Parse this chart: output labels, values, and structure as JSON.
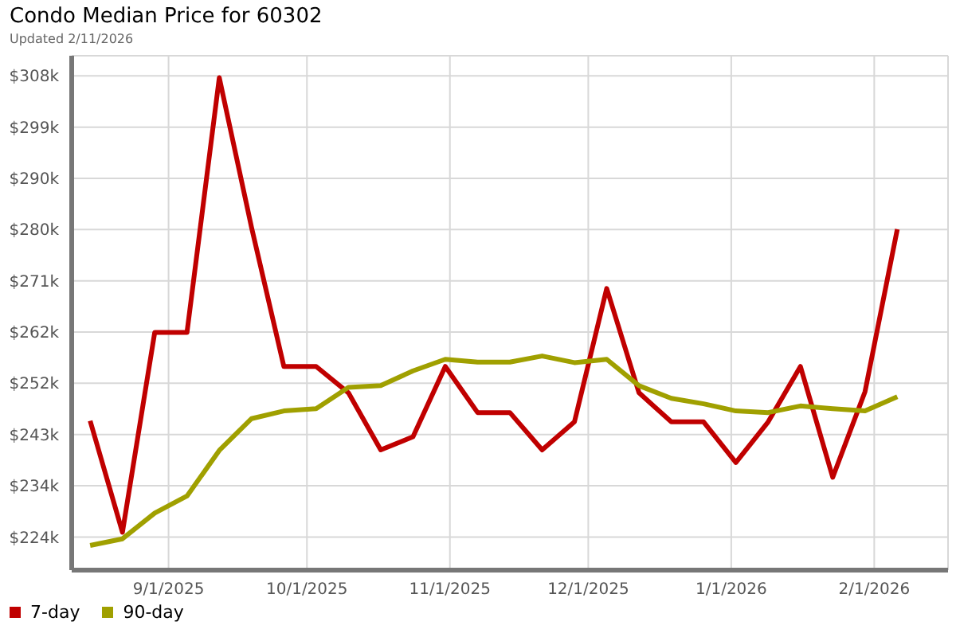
{
  "chart_data": {
    "type": "line",
    "title": "Condo Median Price for 60302",
    "subtitle": "Updated 2/11/2026",
    "x": [
      "2025-08-15",
      "2025-08-22",
      "2025-08-29",
      "2025-09-05",
      "2025-09-12",
      "2025-09-19",
      "2025-09-26",
      "2025-10-03",
      "2025-10-10",
      "2025-10-17",
      "2025-10-24",
      "2025-10-31",
      "2025-11-07",
      "2025-11-14",
      "2025-11-21",
      "2025-11-28",
      "2025-12-05",
      "2025-12-12",
      "2025-12-19",
      "2025-12-26",
      "2026-01-02",
      "2026-01-09",
      "2026-01-16",
      "2026-01-23",
      "2026-01-30",
      "2026-02-06"
    ],
    "series": [
      {
        "name": "7-day",
        "color": "#c00000",
        "values": [
          245500,
          225200,
          261600,
          261600,
          308000,
          280700,
          255400,
          255400,
          250600,
          240200,
          242600,
          255400,
          247000,
          247000,
          240200,
          245300,
          269600,
          250600,
          245300,
          245300,
          237900,
          245300,
          255400,
          235200,
          250800,
          280400
        ]
      },
      {
        "name": "90-day",
        "color": "#a0a000",
        "values": [
          222800,
          224000,
          228700,
          231800,
          240100,
          245900,
          247300,
          247700,
          251600,
          251900,
          254600,
          256700,
          256200,
          256200,
          257300,
          256100,
          256700,
          251900,
          249600,
          248600,
          247300,
          247000,
          248200,
          247700,
          247300,
          249900
        ]
      }
    ],
    "xlim": [
      "2025-08-11",
      "2026-02-17"
    ],
    "xticks": [
      {
        "value": "2025-09-01",
        "label": "9/1/2025"
      },
      {
        "value": "2025-10-01",
        "label": "10/1/2025"
      },
      {
        "value": "2025-11-01",
        "label": "11/1/2025"
      },
      {
        "value": "2025-12-01",
        "label": "12/1/2025"
      },
      {
        "value": "2026-01-01",
        "label": "1/1/2026"
      },
      {
        "value": "2026-02-01",
        "label": "2/1/2026"
      }
    ],
    "ylim": [
      218300,
      312000
    ],
    "yticks": [
      {
        "value": 224333,
        "label": "$224k"
      },
      {
        "value": 233667,
        "label": "$234k"
      },
      {
        "value": 243000,
        "label": "$243k"
      },
      {
        "value": 252333,
        "label": "$252k"
      },
      {
        "value": 261667,
        "label": "$262k"
      },
      {
        "value": 271000,
        "label": "$271k"
      },
      {
        "value": 280333,
        "label": "$280k"
      },
      {
        "value": 289667,
        "label": "$290k"
      },
      {
        "value": 299000,
        "label": "$299k"
      },
      {
        "value": 308333,
        "label": "$308k"
      }
    ],
    "grid": true,
    "legend": "bottom left",
    "marker": "none",
    "line_style": "solid"
  }
}
